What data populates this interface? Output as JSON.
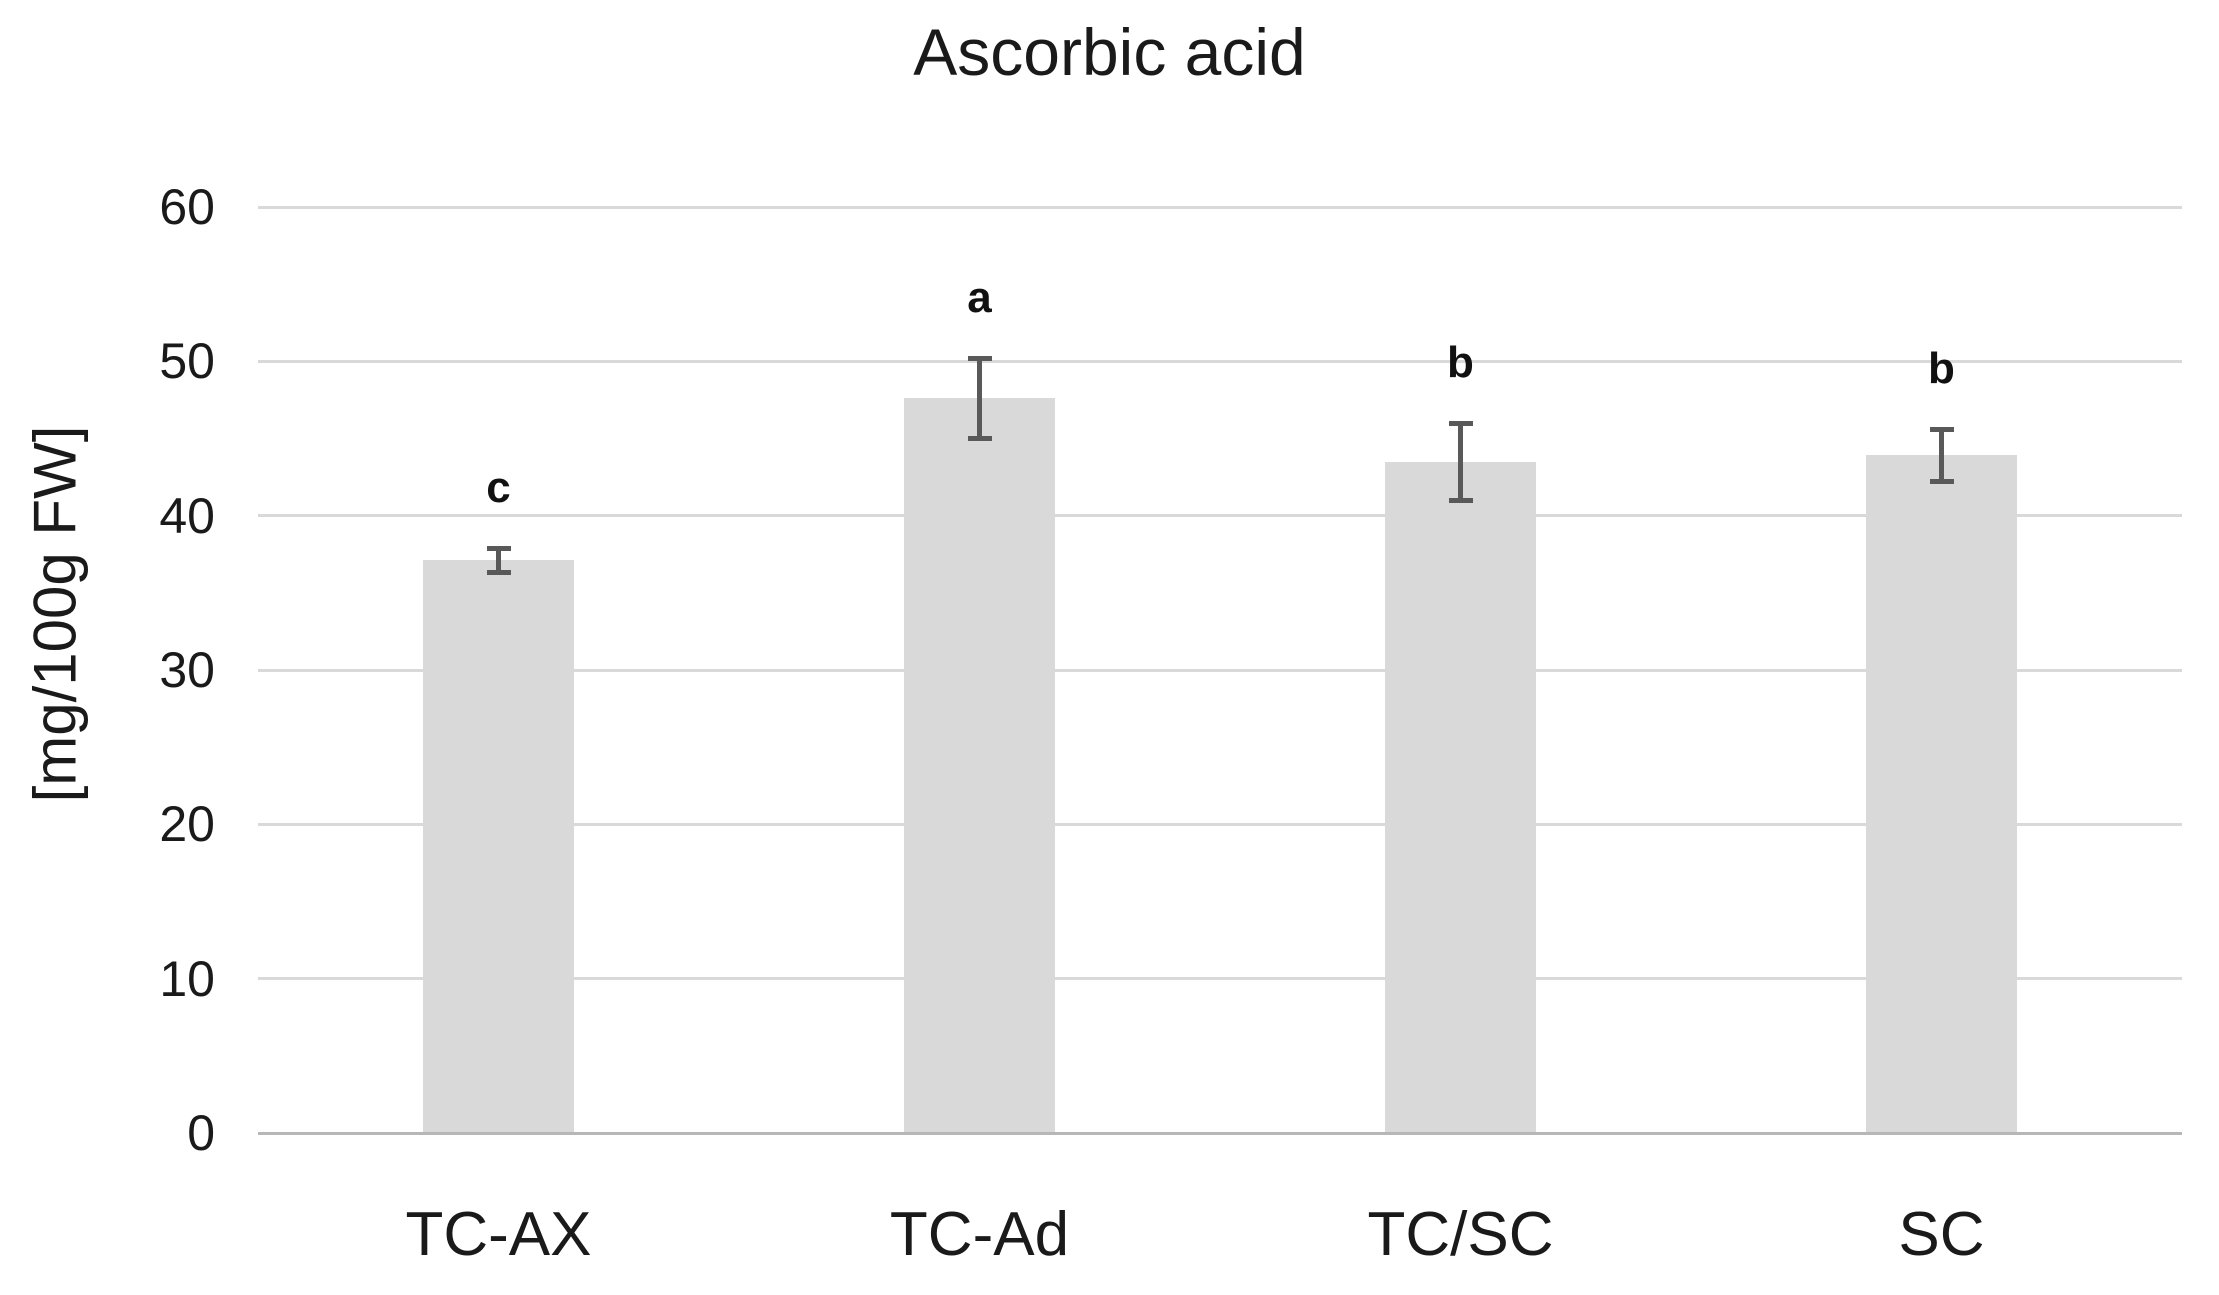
{
  "chart_data": {
    "type": "bar",
    "title": "Ascorbic acid",
    "xlabel": "",
    "ylabel": "[mg/100g FW]",
    "categories": [
      "TC-AX",
      "TC-Ad",
      "TC/SC",
      "SC"
    ],
    "values": [
      37.1,
      47.6,
      43.5,
      43.9
    ],
    "error_bars": [
      0.8,
      2.6,
      2.5,
      1.7
    ],
    "sig_letters": [
      "c",
      "a",
      "b",
      "b"
    ],
    "ylim": [
      0,
      60
    ],
    "yticks": [
      0,
      10,
      20,
      30,
      40,
      50,
      60
    ],
    "grid": true,
    "legend": "none",
    "bar_color": "#d9d9d9",
    "grid_color": "#d9d9d9",
    "axis_line_color": "#b7b7b7",
    "error_color": "#595959",
    "text_color": "#1a1a1a"
  }
}
